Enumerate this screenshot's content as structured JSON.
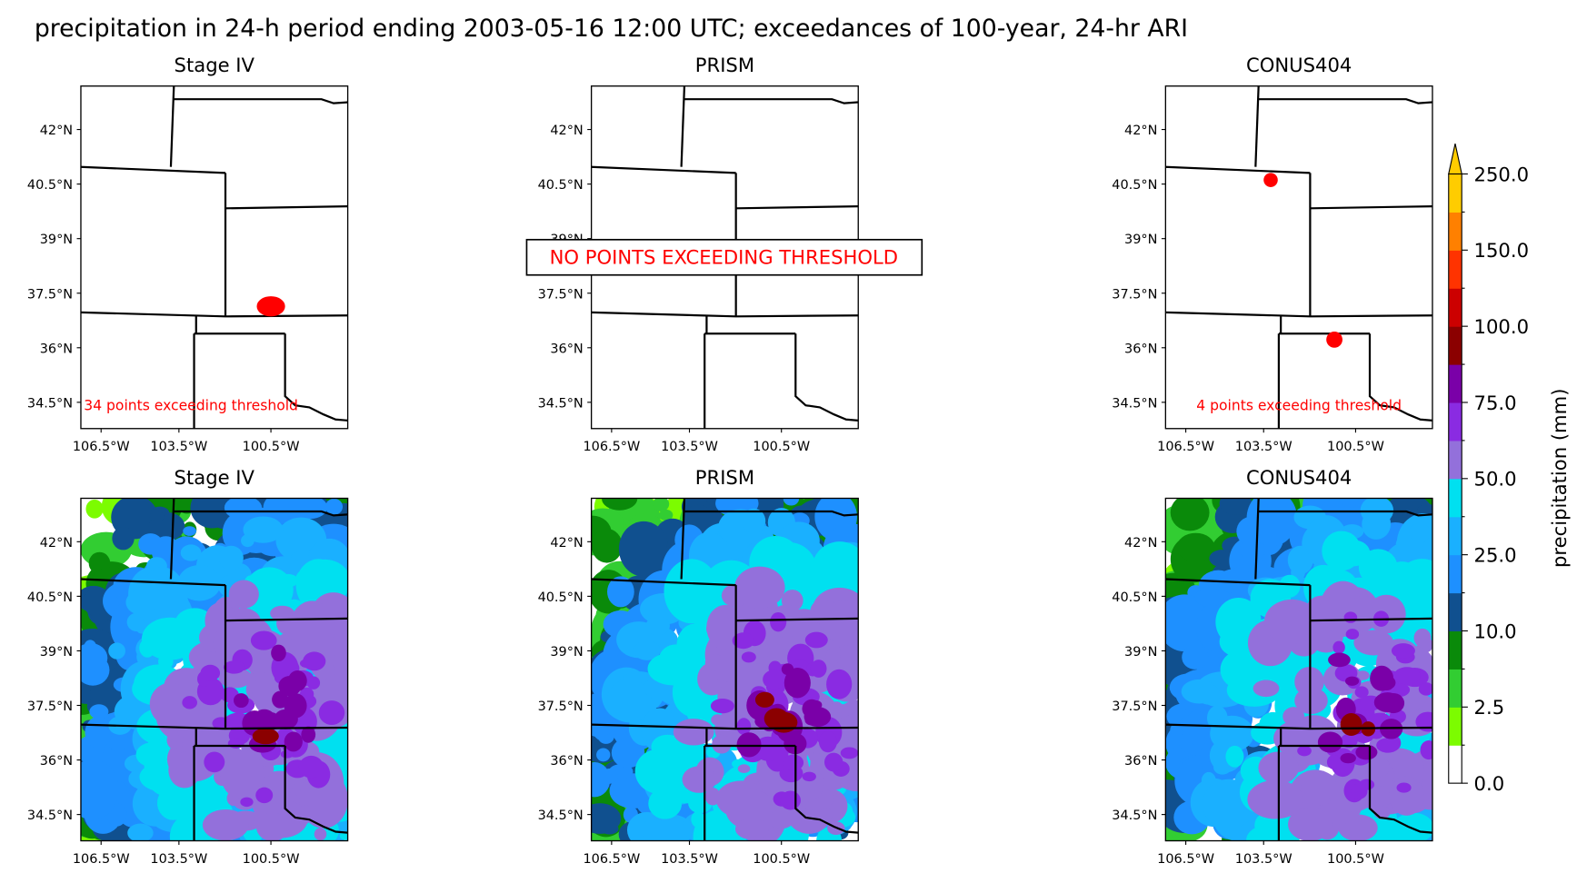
{
  "title": "precipitation in 24-h period ending 2003-05-16 12:00 UTC; exceedances of 100-year, 24-hr ARI",
  "panels": [
    {
      "title": "Stage IV",
      "annotation": "34 points exceeding threshold"
    },
    {
      "title": "PRISM",
      "annotation": "NO POINTS EXCEEDING THRESHOLD"
    },
    {
      "title": "CONUS404",
      "annotation": "4 points exceeding threshold"
    },
    {
      "title": "Stage IV"
    },
    {
      "title": "PRISM"
    },
    {
      "title": "CONUS404"
    }
  ],
  "lat_ticks": [
    "42°N",
    "40.5°N",
    "39°N",
    "37.5°N",
    "36°N",
    "34.5°N"
  ],
  "lon_ticks": [
    "106.5°W",
    "103.5°W",
    "100.5°W"
  ],
  "colorbar": {
    "label": "precipitation (mm)",
    "ticks": [
      "0.0",
      "2.5",
      "10.0",
      "25.0",
      "50.0",
      "75.0",
      "100.0",
      "150.0",
      "250.0"
    ],
    "colors": [
      "#ffffff",
      "#7cfc00",
      "#32cd32",
      "#0a8a0a",
      "#10508f",
      "#1e90ff",
      "#1ab0ff",
      "#00e0f0",
      "#9370db",
      "#8a2be2",
      "#7a00a8",
      "#8b0000",
      "#cc0000",
      "#ff3300",
      "#ff8000",
      "#ffcc00"
    ]
  }
}
